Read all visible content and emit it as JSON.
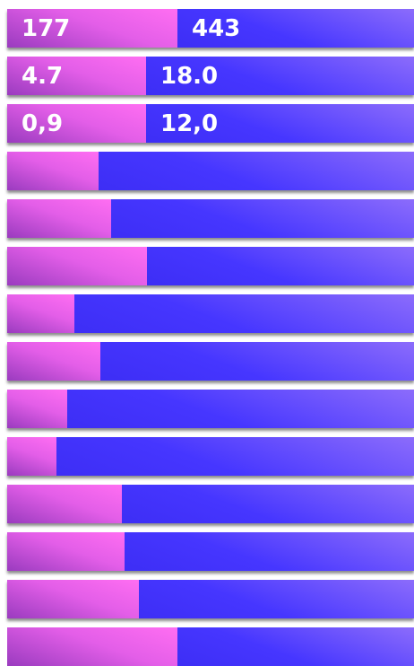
{
  "rows": [
    {
      "left": "177",
      "right": "443"
    },
    {
      "left": "4.7",
      "right": "18.0"
    },
    {
      "left": "0,9",
      "right": "12,0"
    }
  ]
}
